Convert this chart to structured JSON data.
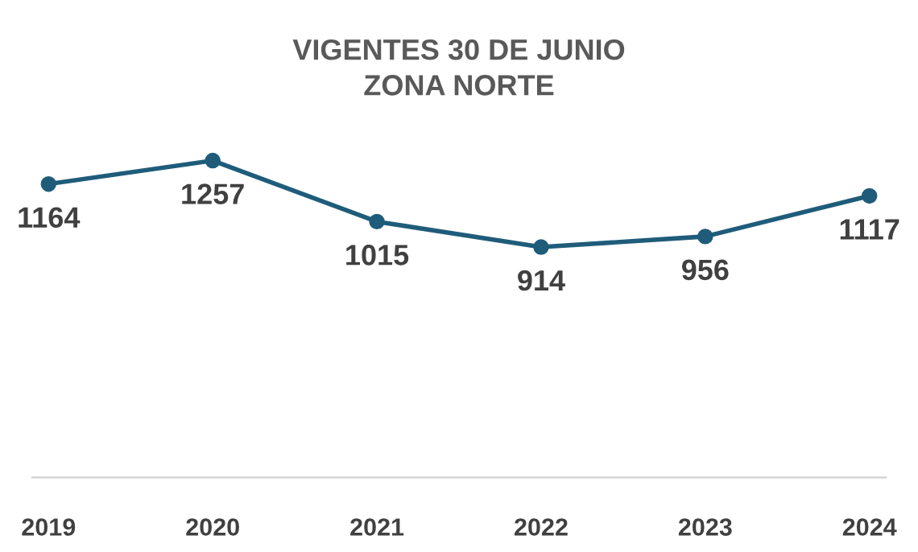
{
  "chart_data": {
    "type": "line",
    "title": "VIGENTES 30 DE JUNIO\nZONA NORTE",
    "categories": [
      "2019",
      "2020",
      "2021",
      "2022",
      "2023",
      "2024"
    ],
    "series": [
      {
        "color": "#1f5c7a",
        "values": [
          1164,
          1257,
          1015,
          914,
          956,
          1117
        ]
      }
    ],
    "data_labels": true,
    "marker": "circle",
    "line_style": "solid",
    "grid": false,
    "legend": false
  }
}
